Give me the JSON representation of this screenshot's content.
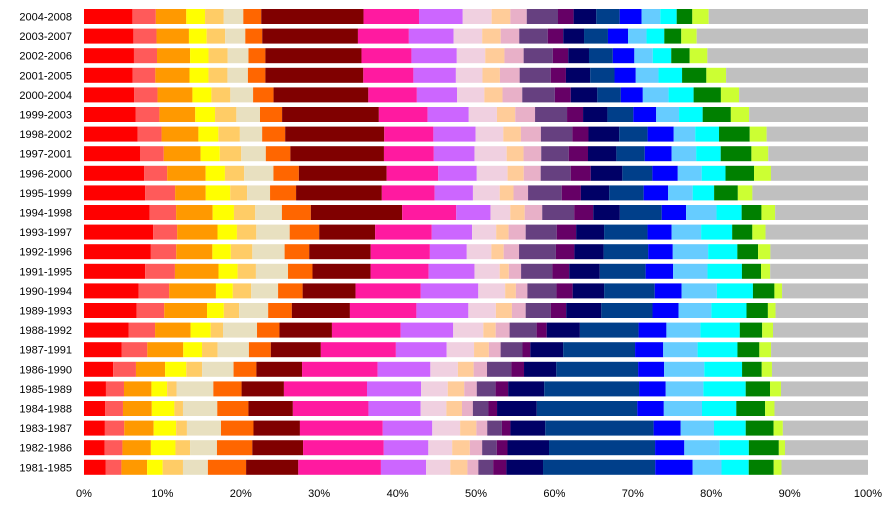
{
  "chart_data": {
    "type": "bar",
    "orientation": "horizontal",
    "stacked": true,
    "percent": true,
    "title": "",
    "xlabel": "",
    "ylabel": "",
    "xlim": [
      0,
      100
    ],
    "x_ticks": [
      "0%",
      "10%",
      "20%",
      "30%",
      "40%",
      "50%",
      "60%",
      "70%",
      "80%",
      "90%",
      "100%"
    ],
    "legend": "none",
    "grid": false,
    "categories": [
      "2004-2008",
      "2003-2007",
      "2002-2006",
      "2001-2005",
      "2000-2004",
      "1999-2003",
      "1998-2002",
      "1997-2001",
      "1996-2000",
      "1995-1999",
      "1994-1998",
      "1993-1997",
      "1992-1996",
      "1991-1995",
      "1990-1994",
      "1989-1993",
      "1988-1992",
      "1987-1991",
      "1986-1990",
      "1985-1989",
      "1984-1988",
      "1983-1987",
      "1982-1986",
      "1981-1985"
    ],
    "segment_colors": [
      "#ff0000",
      "#ff5a5a",
      "#ff9900",
      "#ffff00",
      "#ffcc66",
      "#e8e0c0",
      "#ff6600",
      "#800000",
      "#ff1aa0",
      "#cc66ff",
      "#f0d0e0",
      "#ffcc99",
      "#e8b0c8",
      "#664080",
      "#660066",
      "#000066",
      "#003f8a",
      "#0000ff",
      "#66ccff",
      "#00ffff",
      "#008000",
      "#ccff33",
      "#c0c0c0"
    ],
    "rows": [
      [
        6.2,
        3.0,
        3.9,
        2.4,
        2.4,
        2.5,
        2.3,
        13.1,
        7.1,
        5.6,
        3.7,
        2.4,
        2.1,
        4.0,
        2.0,
        2.9,
        3.0,
        2.8,
        2.4,
        2.1,
        2.0,
        2.1,
        20.4
      ],
      [
        6.4,
        3.0,
        4.2,
        2.3,
        2.4,
        2.6,
        2.2,
        12.4,
        6.6,
        5.8,
        3.7,
        2.4,
        2.4,
        3.7,
        2.0,
        2.7,
        3.1,
        2.6,
        2.4,
        2.3,
        2.2,
        2.0,
        22.2
      ],
      [
        6.5,
        3.0,
        4.3,
        2.4,
        2.5,
        2.7,
        2.2,
        12.5,
        6.5,
        5.9,
        3.7,
        2.5,
        2.5,
        3.8,
        2.0,
        2.7,
        3.1,
        2.8,
        2.4,
        2.4,
        2.4,
        2.3,
        20.9
      ],
      [
        6.4,
        3.0,
        4.5,
        2.5,
        2.5,
        2.7,
        2.3,
        12.9,
        6.6,
        5.6,
        3.5,
        2.3,
        2.6,
        4.1,
        2.0,
        3.2,
        3.2,
        2.8,
        3.0,
        3.1,
        3.2,
        2.6,
        18.7
      ],
      [
        6.6,
        3.1,
        4.6,
        2.5,
        2.5,
        3.0,
        2.7,
        12.5,
        6.4,
        5.3,
        3.6,
        2.4,
        2.6,
        4.3,
        2.1,
        3.5,
        3.1,
        2.9,
        3.4,
        3.3,
        3.6,
        2.4,
        17.0
      ],
      [
        6.8,
        3.1,
        4.7,
        2.6,
        2.8,
        3.1,
        2.9,
        12.7,
        6.4,
        5.4,
        3.7,
        2.4,
        2.6,
        4.2,
        2.1,
        3.2,
        3.4,
        3.0,
        3.0,
        3.1,
        3.7,
        2.4,
        15.6
      ],
      [
        7.0,
        3.1,
        4.8,
        2.6,
        2.8,
        2.9,
        3.0,
        12.9,
        6.4,
        5.5,
        3.6,
        2.3,
        2.6,
        4.1,
        2.1,
        4.0,
        3.7,
        3.4,
        2.8,
        3.1,
        4.0,
        2.2,
        13.2
      ],
      [
        7.3,
        3.1,
        4.8,
        2.5,
        2.8,
        3.2,
        3.2,
        12.2,
        6.5,
        5.3,
        4.2,
        2.2,
        2.3,
        3.6,
        2.5,
        3.7,
        3.7,
        3.5,
        3.2,
        3.2,
        4.0,
        2.2,
        13.0
      ],
      [
        7.8,
        3.0,
        5.0,
        2.5,
        2.5,
        3.8,
        3.3,
        11.4,
        6.7,
        5.0,
        4.0,
        2.1,
        2.2,
        3.9,
        2.6,
        4.1,
        3.9,
        3.3,
        3.1,
        3.1,
        3.7,
        2.2,
        12.6
      ],
      [
        8.0,
        3.9,
        4.0,
        3.2,
        2.2,
        3.0,
        3.4,
        11.2,
        6.9,
        5.0,
        3.5,
        1.8,
        1.9,
        4.4,
        2.5,
        3.7,
        4.5,
        3.2,
        3.2,
        2.8,
        3.1,
        1.9,
        15.1
      ],
      [
        8.6,
        3.5,
        4.8,
        2.8,
        2.8,
        3.5,
        3.8,
        12.0,
        7.1,
        4.5,
        2.6,
        1.9,
        2.3,
        4.2,
        2.5,
        3.5,
        5.5,
        3.2,
        4.0,
        3.3,
        2.6,
        1.8,
        12.2
      ],
      [
        8.9,
        3.1,
        5.2,
        2.5,
        2.5,
        4.3,
        3.8,
        7.2,
        7.3,
        5.2,
        3.1,
        1.6,
        2.2,
        4.0,
        2.5,
        3.6,
        5.6,
        3.1,
        3.8,
        4.0,
        2.6,
        1.7,
        13.2
      ],
      [
        8.7,
        3.3,
        4.7,
        2.4,
        2.8,
        4.2,
        3.2,
        8.0,
        7.7,
        4.8,
        3.2,
        1.6,
        2.0,
        4.8,
        2.4,
        3.8,
        5.8,
        3.2,
        4.6,
        3.8,
        2.7,
        1.6,
        12.7
      ],
      [
        8.0,
        3.9,
        5.7,
        2.5,
        2.4,
        4.2,
        3.2,
        7.6,
        7.6,
        6.0,
        3.3,
        1.2,
        1.6,
        4.1,
        2.2,
        4.0,
        6.0,
        3.6,
        4.5,
        4.5,
        2.5,
        1.2,
        12.8
      ],
      [
        7.1,
        4.0,
        6.1,
        2.2,
        2.4,
        3.5,
        3.2,
        6.9,
        8.5,
        7.5,
        3.5,
        1.4,
        1.5,
        3.8,
        2.1,
        4.1,
        6.6,
        3.5,
        4.6,
        4.7,
        2.8,
        1.0,
        11.2
      ],
      [
        6.9,
        3.6,
        5.6,
        2.2,
        2.0,
        3.8,
        3.1,
        7.6,
        8.7,
        6.8,
        3.6,
        2.1,
        1.8,
        3.3,
        2.0,
        4.6,
        6.7,
        3.4,
        4.3,
        4.6,
        2.8,
        1.0,
        12.1
      ],
      [
        5.8,
        3.4,
        4.6,
        2.6,
        1.6,
        4.4,
        2.9,
        6.8,
        8.9,
        6.8,
        3.9,
        1.6,
        1.8,
        3.5,
        1.3,
        4.3,
        7.6,
        3.6,
        4.4,
        5.1,
        2.9,
        1.4,
        12.3
      ],
      [
        4.8,
        3.3,
        4.6,
        2.4,
        2.0,
        4.0,
        2.8,
        6.4,
        9.6,
        6.5,
        3.5,
        1.9,
        1.5,
        2.8,
        1.0,
        4.2,
        9.2,
        3.6,
        4.4,
        5.1,
        2.8,
        1.5,
        12.4
      ],
      [
        3.7,
        2.9,
        3.7,
        2.7,
        2.0,
        4.0,
        2.9,
        5.8,
        9.6,
        6.7,
        3.5,
        2.0,
        1.7,
        3.1,
        1.6,
        4.1,
        10.4,
        3.3,
        5.1,
        4.8,
        2.5,
        1.3,
        12.2
      ],
      [
        2.8,
        2.3,
        3.5,
        2.0,
        1.2,
        4.7,
        3.6,
        5.4,
        10.6,
        6.9,
        3.4,
        2.1,
        1.6,
        2.4,
        1.6,
        4.6,
        12.1,
        3.4,
        4.8,
        5.4,
        3.1,
        1.4,
        11.1
      ],
      [
        2.7,
        2.3,
        3.7,
        2.9,
        1.1,
        4.4,
        4.0,
        5.7,
        9.7,
        6.7,
        3.3,
        2.0,
        1.4,
        2.0,
        1.1,
        5.1,
        12.9,
        3.4,
        4.9,
        4.4,
        3.7,
        1.2,
        12.0
      ],
      [
        2.7,
        2.5,
        3.8,
        2.9,
        1.4,
        4.4,
        4.2,
        6.0,
        10.7,
        6.4,
        3.6,
        2.1,
        1.4,
        1.9,
        1.1,
        4.5,
        14.0,
        3.5,
        4.3,
        4.1,
        3.6,
        1.2,
        11.0
      ],
      [
        2.7,
        2.3,
        3.7,
        3.2,
        1.9,
        3.5,
        4.6,
        6.6,
        10.5,
        5.8,
        3.1,
        2.3,
        1.6,
        1.9,
        1.4,
        5.4,
        13.8,
        3.8,
        4.6,
        3.8,
        3.9,
        0.8,
        10.8
      ],
      [
        2.8,
        2.0,
        3.3,
        2.0,
        2.6,
        3.2,
        4.9,
        6.7,
        10.6,
        5.8,
        3.1,
        2.2,
        1.4,
        1.9,
        1.7,
        4.7,
        14.4,
        4.8,
        3.7,
        3.5,
        3.2,
        1.0,
        11.1
      ]
    ]
  }
}
